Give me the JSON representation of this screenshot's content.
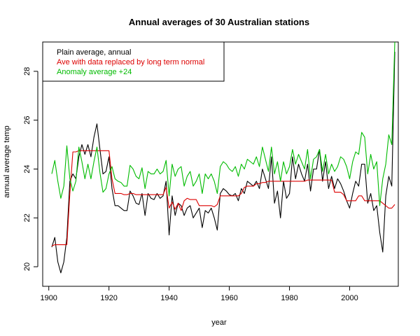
{
  "chart_data": {
    "type": "line",
    "title": "Annual averages of 30 Australian stations",
    "xlabel": "year",
    "ylabel": "annual average temp",
    "xlim": [
      1901,
      2015
    ],
    "ylim": [
      19.6,
      29.2
    ],
    "xticks": [
      1900,
      1920,
      1940,
      1960,
      1980,
      2000
    ],
    "yticks": [
      20,
      22,
      24,
      26,
      28
    ],
    "grid": false,
    "legend_position": "top-left",
    "x": [
      1901,
      1902,
      1903,
      1904,
      1905,
      1906,
      1907,
      1908,
      1909,
      1910,
      1911,
      1912,
      1913,
      1914,
      1915,
      1916,
      1917,
      1918,
      1919,
      1920,
      1921,
      1922,
      1923,
      1924,
      1925,
      1926,
      1927,
      1928,
      1929,
      1930,
      1931,
      1932,
      1933,
      1934,
      1935,
      1936,
      1937,
      1938,
      1939,
      1940,
      1941,
      1942,
      1943,
      1944,
      1945,
      1946,
      1947,
      1948,
      1949,
      1950,
      1951,
      1952,
      1953,
      1954,
      1955,
      1956,
      1957,
      1958,
      1959,
      1960,
      1961,
      1962,
      1963,
      1964,
      1965,
      1966,
      1967,
      1968,
      1969,
      1970,
      1971,
      1972,
      1973,
      1974,
      1975,
      1976,
      1977,
      1978,
      1979,
      1980,
      1981,
      1982,
      1983,
      1984,
      1985,
      1986,
      1987,
      1988,
      1989,
      1990,
      1991,
      1992,
      1993,
      1994,
      1995,
      1996,
      1997,
      1998,
      1999,
      2000,
      2001,
      2002,
      2003,
      2004,
      2005,
      2006,
      2007,
      2008,
      2009,
      2010,
      2011,
      2012,
      2013,
      2014,
      2015
    ],
    "series": [
      {
        "name": "Plain average, annual",
        "color": "#000000",
        "values": [
          20.8,
          21.2,
          20.2,
          19.75,
          20.2,
          21.2,
          23.5,
          23.8,
          23.6,
          24.5,
          25.0,
          24.6,
          25.0,
          24.5,
          25.3,
          25.85,
          24.8,
          23.8,
          23.9,
          24.5,
          23.2,
          22.5,
          22.5,
          22.4,
          22.3,
          22.3,
          23.1,
          22.9,
          22.6,
          22.55,
          23.0,
          22.1,
          23.0,
          22.8,
          22.75,
          23.0,
          22.8,
          22.9,
          23.5,
          21.3,
          22.9,
          22.1,
          22.6,
          22.5,
          22.1,
          22.4,
          22.5,
          22.0,
          22.2,
          22.4,
          21.6,
          22.3,
          22.2,
          22.4,
          22.0,
          21.5,
          23.0,
          23.2,
          23.1,
          22.95,
          22.9,
          23.0,
          22.7,
          23.2,
          23.0,
          23.5,
          23.4,
          23.3,
          23.5,
          23.2,
          24.0,
          23.6,
          23.2,
          24.5,
          22.6,
          23.1,
          22.0,
          23.5,
          22.8,
          23.0,
          24.5,
          23.6,
          24.2,
          23.8,
          23.5,
          24.2,
          23.1,
          24.0,
          24.0,
          24.8,
          23.5,
          24.3,
          23.2,
          23.7,
          23.2,
          23.6,
          23.4,
          23.1,
          22.7,
          22.4,
          23.0,
          23.5,
          23.3,
          24.2,
          24.2,
          22.6,
          23.0,
          22.3,
          22.5,
          21.4,
          20.6,
          22.9,
          23.7,
          23.3,
          28.8
        ]
      },
      {
        "name": "Ave with data replaced by long term normal",
        "color": "#dd0000",
        "values": [
          20.85,
          20.9,
          20.9,
          20.9,
          20.9,
          20.9,
          23.0,
          24.7,
          24.7,
          24.75,
          24.75,
          24.75,
          24.75,
          24.75,
          24.75,
          24.75,
          24.75,
          24.75,
          24.75,
          24.75,
          23.6,
          23.0,
          23.0,
          23.0,
          22.95,
          22.95,
          23.0,
          23.0,
          22.95,
          22.95,
          22.95,
          22.95,
          22.95,
          22.95,
          22.95,
          22.95,
          22.95,
          22.95,
          23.25,
          22.4,
          22.65,
          22.35,
          22.6,
          22.3,
          22.7,
          22.8,
          22.75,
          22.75,
          22.75,
          22.5,
          22.5,
          22.5,
          22.5,
          22.5,
          22.45,
          22.55,
          22.9,
          22.9,
          22.9,
          22.9,
          22.9,
          22.9,
          22.9,
          23.0,
          23.25,
          23.3,
          23.3,
          23.3,
          23.4,
          23.4,
          23.45,
          23.45,
          23.5,
          23.5,
          23.5,
          23.5,
          23.5,
          23.5,
          23.5,
          23.5,
          23.5,
          23.5,
          23.5,
          23.5,
          23.5,
          23.55,
          23.55,
          23.55,
          23.55,
          23.55,
          23.55,
          23.55,
          23.55,
          23.55,
          23.05,
          23.05,
          23.05,
          22.95,
          22.7,
          22.7,
          22.7,
          22.7,
          22.9,
          22.9,
          22.7,
          22.7,
          22.7,
          22.7,
          22.7,
          22.7,
          22.6,
          22.5,
          22.4,
          22.4,
          22.55
        ]
      },
      {
        "name": "Anomaly average +24",
        "color": "#00bb00",
        "values": [
          23.8,
          24.35,
          23.5,
          22.8,
          23.3,
          24.95,
          23.6,
          23.1,
          23.5,
          24.9,
          24.3,
          23.6,
          24.2,
          23.6,
          24.3,
          24.9,
          23.85,
          23.05,
          23.2,
          23.8,
          24.1,
          23.6,
          23.5,
          23.45,
          23.3,
          23.3,
          24.15,
          24.0,
          23.7,
          23.6,
          24.05,
          23.2,
          23.9,
          23.8,
          23.8,
          24.0,
          23.8,
          23.9,
          24.35,
          22.9,
          24.2,
          23.7,
          24.0,
          24.1,
          23.3,
          23.7,
          23.9,
          23.3,
          23.5,
          23.8,
          23.0,
          23.8,
          23.6,
          23.8,
          23.5,
          23.0,
          24.1,
          24.3,
          24.2,
          24.0,
          23.9,
          24.1,
          23.7,
          24.2,
          24.0,
          24.4,
          24.3,
          24.2,
          24.5,
          24.1,
          24.9,
          24.4,
          23.9,
          24.9,
          23.8,
          24.3,
          23.5,
          24.3,
          23.8,
          24.1,
          24.8,
          24.2,
          24.6,
          24.3,
          24.0,
          24.8,
          23.6,
          24.4,
          24.5,
          24.8,
          23.9,
          24.6,
          23.8,
          24.2,
          23.9,
          24.1,
          24.5,
          24.4,
          24.1,
          23.6,
          24.3,
          24.7,
          24.6,
          25.5,
          25.3,
          23.8,
          24.6,
          24.0,
          24.3,
          22.5,
          23.6,
          24.2,
          25.4,
          25.0,
          29.2
        ]
      }
    ]
  }
}
